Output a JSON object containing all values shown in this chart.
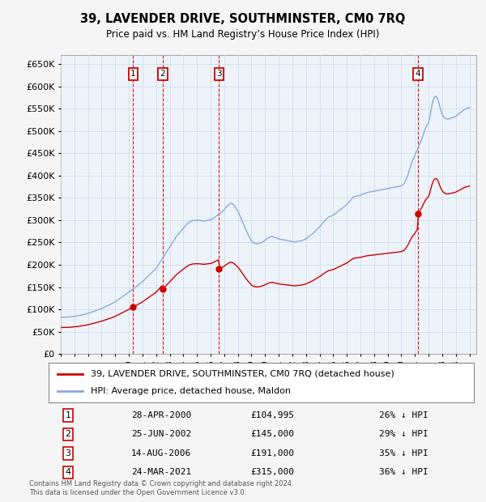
{
  "title": "39, LAVENDER DRIVE, SOUTHMINSTER, CM0 7RQ",
  "subtitle": "Price paid vs. HM Land Registry’s House Price Index (HPI)",
  "sales": [
    {
      "label": "1",
      "date_str": "28-APR-2000",
      "year": 2000.32,
      "price": 104995
    },
    {
      "label": "2",
      "date_str": "25-JUN-2002",
      "year": 2002.48,
      "price": 145000
    },
    {
      "label": "3",
      "date_str": "14-AUG-2006",
      "year": 2006.62,
      "price": 191000
    },
    {
      "label": "4",
      "date_str": "24-MAR-2021",
      "year": 2021.23,
      "price": 315000
    }
  ],
  "red_line_color": "#cc0000",
  "blue_line_color": "#88aadd",
  "background_color": "#f5f5f5",
  "plot_bg_color": "#eef3fa",
  "grid_color": "#c8d8e8",
  "ylim": [
    0,
    670000
  ],
  "xlim": [
    1995.0,
    2025.5
  ],
  "yticks": [
    0,
    50000,
    100000,
    150000,
    200000,
    250000,
    300000,
    350000,
    400000,
    450000,
    500000,
    550000,
    600000,
    650000
  ],
  "legend_label_red": "39, LAVENDER DRIVE, SOUTHMINSTER, CM0 7RQ (detached house)",
  "legend_label_blue": "HPI: Average price, detached house, Maldon",
  "footer": "Contains HM Land Registry data © Crown copyright and database right 2024.\nThis data is licensed under the Open Government Licence v3.0.",
  "row_data": [
    [
      "1",
      "28-APR-2000",
      "£104,995",
      "26% ↓ HPI"
    ],
    [
      "2",
      "25-JUN-2002",
      "£145,000",
      "29% ↓ HPI"
    ],
    [
      "3",
      "14-AUG-2006",
      "£191,000",
      "35% ↓ HPI"
    ],
    [
      "4",
      "24-MAR-2021",
      "£315,000",
      "36% ↓ HPI"
    ]
  ],
  "hpi_data": {
    "1995.0": 82000,
    "1995.08": 82200,
    "1995.17": 82400,
    "1995.25": 82600,
    "1995.33": 82500,
    "1995.42": 82300,
    "1995.5": 82500,
    "1995.58": 82800,
    "1995.67": 83000,
    "1995.75": 83200,
    "1995.83": 83500,
    "1995.92": 83800,
    "1996.0": 84200,
    "1996.08": 84600,
    "1996.17": 85000,
    "1996.25": 85500,
    "1996.33": 86000,
    "1996.42": 86500,
    "1996.5": 87000,
    "1996.58": 87500,
    "1996.67": 88200,
    "1996.75": 88800,
    "1996.83": 89500,
    "1996.92": 90200,
    "1997.0": 91000,
    "1997.08": 91800,
    "1997.17": 92600,
    "1997.25": 93500,
    "1997.33": 94400,
    "1997.42": 95300,
    "1997.5": 96200,
    "1997.58": 97100,
    "1997.67": 98000,
    "1997.75": 99000,
    "1997.83": 100000,
    "1997.92": 101000,
    "1998.0": 102000,
    "1998.08": 103200,
    "1998.17": 104400,
    "1998.25": 105600,
    "1998.33": 106800,
    "1998.42": 108000,
    "1998.5": 109200,
    "1998.58": 110400,
    "1998.67": 111600,
    "1998.75": 112800,
    "1998.83": 114200,
    "1998.92": 115600,
    "1999.0": 117000,
    "1999.08": 118800,
    "1999.17": 120600,
    "1999.25": 122400,
    "1999.33": 124200,
    "1999.42": 126000,
    "1999.5": 127800,
    "1999.58": 129600,
    "1999.67": 131400,
    "1999.75": 133200,
    "1999.83": 135000,
    "1999.92": 136800,
    "2000.0": 138600,
    "2000.08": 140400,
    "2000.17": 142200,
    "2000.25": 144000,
    "2000.33": 146000,
    "2000.42": 148000,
    "2000.5": 150000,
    "2000.58": 152000,
    "2000.67": 154000,
    "2000.75": 156000,
    "2000.83": 158000,
    "2000.92": 160000,
    "2001.0": 162000,
    "2001.08": 164500,
    "2001.17": 167000,
    "2001.25": 169500,
    "2001.33": 172000,
    "2001.42": 174500,
    "2001.5": 177000,
    "2001.58": 179500,
    "2001.67": 182000,
    "2001.75": 184500,
    "2001.83": 187000,
    "2001.92": 189500,
    "2002.0": 192000,
    "2002.08": 196000,
    "2002.17": 200000,
    "2002.25": 204000,
    "2002.33": 208000,
    "2002.42": 212000,
    "2002.5": 216000,
    "2002.58": 220000,
    "2002.67": 224000,
    "2002.75": 228000,
    "2002.83": 232000,
    "2002.92": 236000,
    "2003.0": 240000,
    "2003.08": 244000,
    "2003.17": 248000,
    "2003.25": 252000,
    "2003.33": 256000,
    "2003.42": 260000,
    "2003.5": 264000,
    "2003.58": 267000,
    "2003.67": 270000,
    "2003.75": 273000,
    "2003.83": 276000,
    "2003.92": 279000,
    "2004.0": 282000,
    "2004.08": 285000,
    "2004.17": 288000,
    "2004.25": 291000,
    "2004.33": 293000,
    "2004.42": 295000,
    "2004.5": 297000,
    "2004.58": 298000,
    "2004.67": 299000,
    "2004.75": 299500,
    "2004.83": 299800,
    "2004.92": 300000,
    "2005.0": 300200,
    "2005.08": 300000,
    "2005.17": 299800,
    "2005.25": 299500,
    "2005.33": 299000,
    "2005.42": 298500,
    "2005.5": 298000,
    "2005.58": 298500,
    "2005.67": 299000,
    "2005.75": 299500,
    "2005.83": 300000,
    "2005.92": 300500,
    "2006.0": 301000,
    "2006.08": 302000,
    "2006.17": 303500,
    "2006.25": 305000,
    "2006.33": 307000,
    "2006.42": 309000,
    "2006.5": 311000,
    "2006.58": 313000,
    "2006.67": 315000,
    "2006.75": 317000,
    "2006.83": 319000,
    "2006.92": 321000,
    "2007.0": 323000,
    "2007.08": 327000,
    "2007.17": 330000,
    "2007.25": 333000,
    "2007.33": 335000,
    "2007.42": 337000,
    "2007.5": 338000,
    "2007.58": 337000,
    "2007.67": 335000,
    "2007.75": 332000,
    "2007.83": 328000,
    "2007.92": 324000,
    "2008.0": 320000,
    "2008.08": 315000,
    "2008.17": 309000,
    "2008.25": 303000,
    "2008.33": 297000,
    "2008.42": 291000,
    "2008.5": 285000,
    "2008.58": 279000,
    "2008.67": 273000,
    "2008.75": 268000,
    "2008.83": 263000,
    "2008.92": 258000,
    "2009.0": 254000,
    "2009.08": 251000,
    "2009.17": 249000,
    "2009.25": 248000,
    "2009.33": 247500,
    "2009.42": 247000,
    "2009.5": 247500,
    "2009.58": 248000,
    "2009.67": 249000,
    "2009.75": 250000,
    "2009.83": 251500,
    "2009.92": 253000,
    "2010.0": 255000,
    "2010.08": 257000,
    "2010.17": 259000,
    "2010.25": 261000,
    "2010.33": 262000,
    "2010.42": 263000,
    "2010.5": 263500,
    "2010.58": 263000,
    "2010.67": 262000,
    "2010.75": 261000,
    "2010.83": 260000,
    "2010.92": 259000,
    "2011.0": 258000,
    "2011.08": 257500,
    "2011.17": 257000,
    "2011.25": 256500,
    "2011.33": 256000,
    "2011.42": 255500,
    "2011.5": 255000,
    "2011.58": 254500,
    "2011.67": 254000,
    "2011.75": 253500,
    "2011.83": 253000,
    "2011.92": 252500,
    "2012.0": 252000,
    "2012.08": 251500,
    "2012.17": 251000,
    "2012.25": 251500,
    "2012.33": 252000,
    "2012.42": 252500,
    "2012.5": 253000,
    "2012.58": 253500,
    "2012.67": 254000,
    "2012.75": 255000,
    "2012.83": 256000,
    "2012.92": 257000,
    "2013.0": 258000,
    "2013.08": 260000,
    "2013.17": 262000,
    "2013.25": 264000,
    "2013.33": 266000,
    "2013.42": 268000,
    "2013.5": 270000,
    "2013.58": 272500,
    "2013.67": 275000,
    "2013.75": 277500,
    "2013.83": 280000,
    "2013.92": 282500,
    "2014.0": 285000,
    "2014.08": 288000,
    "2014.17": 291000,
    "2014.25": 294000,
    "2014.33": 297000,
    "2014.42": 300000,
    "2014.5": 303000,
    "2014.58": 305000,
    "2014.67": 307000,
    "2014.75": 308000,
    "2014.83": 309000,
    "2014.92": 310000,
    "2015.0": 311000,
    "2015.08": 313000,
    "2015.17": 315000,
    "2015.25": 317000,
    "2015.33": 319000,
    "2015.42": 321000,
    "2015.5": 323000,
    "2015.58": 325000,
    "2015.67": 327000,
    "2015.75": 329000,
    "2015.83": 331000,
    "2015.92": 333000,
    "2016.0": 335000,
    "2016.08": 338000,
    "2016.17": 341000,
    "2016.25": 344000,
    "2016.33": 347000,
    "2016.42": 350000,
    "2016.5": 352000,
    "2016.58": 353000,
    "2016.67": 354000,
    "2016.75": 354500,
    "2016.83": 355000,
    "2016.92": 355500,
    "2017.0": 356000,
    "2017.08": 357000,
    "2017.17": 358000,
    "2017.25": 359000,
    "2017.33": 360000,
    "2017.42": 361000,
    "2017.5": 362000,
    "2017.58": 362500,
    "2017.67": 363000,
    "2017.75": 363500,
    "2017.83": 364000,
    "2017.92": 364500,
    "2018.0": 365000,
    "2018.08": 365500,
    "2018.17": 366000,
    "2018.25": 366500,
    "2018.33": 367000,
    "2018.42": 367500,
    "2018.5": 368000,
    "2018.58": 368500,
    "2018.67": 369000,
    "2018.75": 369500,
    "2018.83": 370000,
    "2018.92": 370500,
    "2019.0": 371000,
    "2019.08": 371500,
    "2019.17": 372000,
    "2019.25": 372500,
    "2019.33": 373000,
    "2019.42": 373500,
    "2019.5": 374000,
    "2019.58": 374500,
    "2019.67": 375000,
    "2019.75": 375500,
    "2019.83": 376000,
    "2019.92": 376500,
    "2020.0": 377000,
    "2020.08": 379000,
    "2020.17": 381000,
    "2020.25": 385000,
    "2020.33": 390000,
    "2020.42": 396000,
    "2020.5": 403000,
    "2020.58": 412000,
    "2020.67": 420000,
    "2020.75": 428000,
    "2020.83": 435000,
    "2020.92": 440000,
    "2021.0": 445000,
    "2021.08": 452000,
    "2021.17": 458000,
    "2021.25": 464000,
    "2021.33": 470000,
    "2021.42": 476000,
    "2021.5": 482000,
    "2021.58": 490000,
    "2021.67": 498000,
    "2021.75": 505000,
    "2021.83": 510000,
    "2021.92": 515000,
    "2022.0": 518000,
    "2022.08": 530000,
    "2022.17": 545000,
    "2022.25": 558000,
    "2022.33": 568000,
    "2022.42": 575000,
    "2022.5": 578000,
    "2022.58": 577000,
    "2022.67": 572000,
    "2022.75": 563000,
    "2022.83": 553000,
    "2022.92": 544000,
    "2023.0": 537000,
    "2023.08": 533000,
    "2023.17": 530000,
    "2023.25": 528000,
    "2023.33": 527000,
    "2023.42": 527000,
    "2023.5": 527500,
    "2023.58": 528000,
    "2023.67": 529000,
    "2023.75": 530000,
    "2023.83": 531000,
    "2023.92": 532000,
    "2024.0": 533000,
    "2024.08": 535000,
    "2024.17": 537000,
    "2024.25": 539000,
    "2024.33": 541000,
    "2024.42": 543000,
    "2024.5": 545000,
    "2024.58": 547000,
    "2024.67": 549000,
    "2024.75": 550000,
    "2024.83": 551000,
    "2024.92": 552000,
    "2025.0": 553000
  }
}
